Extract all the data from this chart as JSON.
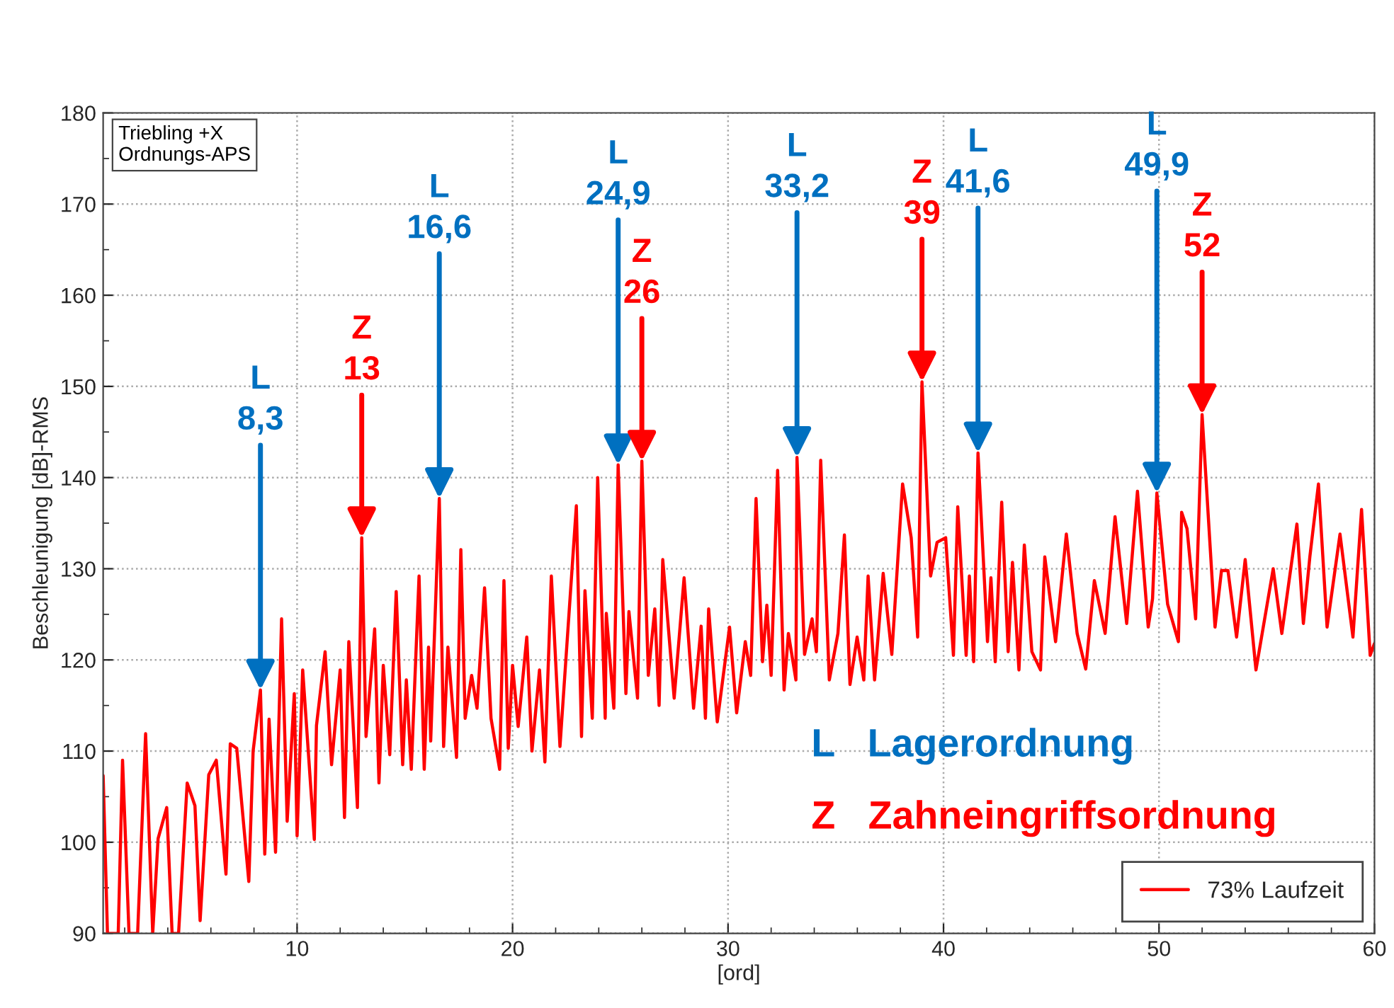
{
  "chart_data": {
    "type": "line",
    "xlabel": "[ord]",
    "ylabel": "Beschleunigung [dB]-RMS",
    "xlim": [
      1,
      60
    ],
    "xticks": [
      10,
      20,
      30,
      40,
      50,
      60
    ],
    "ylim": [
      90,
      180
    ],
    "yticks": [
      90,
      100,
      110,
      120,
      130,
      140,
      150,
      160,
      170,
      180
    ],
    "grid": true,
    "legend": "bottom right",
    "marker": "none",
    "line_style": "solid",
    "series": [
      {
        "name": "73% Laufzeit",
        "color": "#ff0000",
        "x": [
          1,
          1.2,
          1.7,
          1.9,
          2.2,
          2.6,
          2.97,
          3.3,
          3.55,
          3.95,
          4.2,
          4.5,
          4.9,
          5.26,
          5.5,
          5.9,
          6.25,
          6.7,
          6.9,
          7.2,
          7.76,
          7.96,
          8.3,
          8.5,
          8.7,
          9.0,
          9.28,
          9.54,
          9.87,
          10.0,
          10.26,
          10.8,
          10.9,
          11.3,
          11.6,
          12.0,
          12.2,
          12.4,
          12.8,
          13.0,
          13.2,
          13.6,
          13.8,
          14.0,
          14.3,
          14.6,
          14.9,
          15.07,
          15.3,
          15.66,
          15.9,
          16.1,
          16.2,
          16.6,
          16.8,
          17.0,
          17.4,
          17.6,
          17.8,
          18.1,
          18.35,
          18.7,
          19.0,
          19.4,
          19.6,
          19.8,
          20.0,
          20.26,
          20.66,
          20.9,
          21.25,
          21.5,
          21.8,
          22.2,
          22.96,
          23.2,
          23.36,
          23.7,
          23.95,
          24.3,
          24.35,
          24.7,
          24.9,
          25.26,
          25.4,
          25.8,
          26.0,
          26.3,
          26.6,
          26.8,
          26.97,
          27.5,
          27.96,
          28.4,
          28.75,
          28.95,
          29.1,
          29.5,
          30.07,
          30.4,
          30.8,
          31.05,
          31.3,
          31.6,
          31.8,
          32.0,
          32.3,
          32.6,
          32.8,
          33.15,
          33.2,
          33.55,
          33.9,
          34.1,
          34.3,
          34.7,
          35.1,
          35.4,
          35.66,
          35.99,
          36.3,
          36.5,
          36.8,
          37.2,
          37.6,
          38.1,
          38.5,
          38.8,
          39.0,
          39.4,
          39.7,
          40.1,
          40.46,
          40.66,
          41.05,
          41.2,
          41.4,
          41.6,
          42.04,
          42.2,
          42.4,
          42.7,
          43.0,
          43.2,
          43.5,
          43.75,
          44.1,
          44.5,
          44.7,
          45.2,
          45.7,
          46.2,
          46.6,
          47.0,
          47.5,
          47.96,
          48.5,
          49.0,
          49.5,
          49.7,
          49.9,
          50.4,
          50.9,
          51.05,
          51.3,
          51.7,
          52.0,
          52.6,
          52.9,
          53.2,
          53.6,
          54.0,
          54.5,
          55.3,
          55.7,
          56.4,
          56.7,
          57.0,
          57.4,
          57.8,
          58.4,
          59.0,
          59.4,
          59.8,
          60
        ],
        "values": [
          107.3,
          90,
          90,
          109,
          90,
          90,
          111.9,
          90,
          100.4,
          103.8,
          90,
          90,
          106.5,
          104,
          91.4,
          107.4,
          109,
          96.5,
          110.8,
          110.3,
          95.7,
          110,
          116.7,
          98.7,
          113.5,
          98.9,
          124.5,
          102.3,
          116.3,
          100.7,
          118.9,
          100.3,
          112.8,
          120.9,
          108.5,
          118.9,
          102.7,
          122,
          103.8,
          133.4,
          111.6,
          123.4,
          106.5,
          119.4,
          109.6,
          127.5,
          108.5,
          117.8,
          108,
          129.2,
          108,
          121.4,
          111.1,
          137.7,
          110.5,
          121.4,
          109.3,
          132.1,
          113.6,
          118.3,
          114.7,
          127.9,
          113.6,
          108,
          128.7,
          110.3,
          119.4,
          112.7,
          122.5,
          110,
          118.9,
          108.8,
          129.2,
          110.5,
          136.9,
          111.6,
          127.6,
          113.6,
          140,
          113.6,
          125.1,
          114.7,
          141.4,
          116.3,
          125.3,
          115.8,
          141.8,
          118.3,
          125.6,
          115,
          131,
          115.8,
          129,
          114.7,
          123.7,
          113.6,
          125.6,
          113.2,
          123.6,
          114.2,
          122,
          118.3,
          137.7,
          119.8,
          126,
          118.3,
          140.8,
          116.7,
          122.9,
          117.8,
          142.2,
          120.6,
          124.5,
          120.9,
          141.9,
          117.8,
          122.9,
          133.7,
          117.3,
          122.5,
          117.8,
          129.2,
          117.8,
          129.5,
          120.6,
          139.3,
          133.4,
          122.5,
          150.5,
          129.2,
          132.9,
          133.4,
          120.5,
          136.8,
          120.5,
          129.2,
          119.8,
          142.7,
          122,
          129,
          119.8,
          137.3,
          120.9,
          130.7,
          118.9,
          132.6,
          120.9,
          118.9,
          131.3,
          122,
          133.8,
          122.9,
          119,
          128.7,
          122.9,
          135.7,
          124,
          138.5,
          123.6,
          126.7,
          138.3,
          126.1,
          122,
          136.2,
          134.4,
          124.5,
          146.9,
          123.6,
          129.8,
          129.8,
          122.5,
          131,
          118.9,
          130,
          122.9,
          134.9,
          124,
          131.3,
          139.3,
          123.6,
          133.8,
          122.5,
          136.5,
          120.5,
          121.8
        ]
      }
    ],
    "annotations": [
      {
        "text": "Triebling +X\nOrdnungs-APS"
      },
      {
        "text": "L   Lagerordnung"
      },
      {
        "text": "Z   Zahneingriffsordnung"
      },
      {
        "text": "L\n8,3",
        "x": 8.3,
        "y": 116.7
      },
      {
        "text": "Z\n13",
        "x": 13.0,
        "y": 133.4
      },
      {
        "text": "L\n16,6",
        "x": 16.6,
        "y": 137.7
      },
      {
        "text": "L\n24,9",
        "x": 24.9,
        "y": 141.4
      },
      {
        "text": "Z\n26",
        "x": 26.0,
        "y": 141.8
      },
      {
        "text": "L\n33,2",
        "x": 33.2,
        "y": 142.2
      },
      {
        "text": "Z\n39",
        "x": 39.0,
        "y": 150.5
      },
      {
        "text": "L\n41,6",
        "x": 41.6,
        "y": 142.7
      },
      {
        "text": "L\n49,9",
        "x": 49.9,
        "y": 138.3
      },
      {
        "text": "Z\n52",
        "x": 52.0,
        "y": 146.9
      }
    ]
  }
}
